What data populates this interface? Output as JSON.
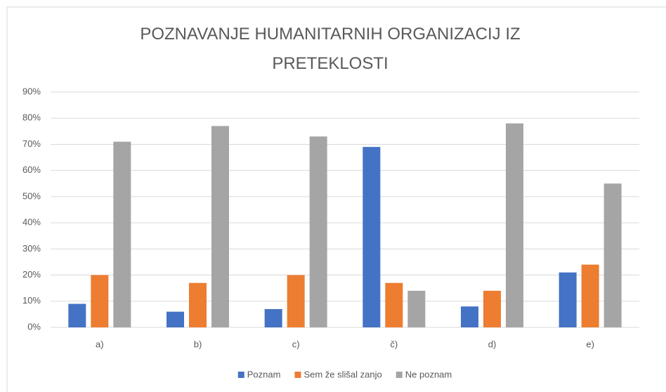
{
  "chart_data": {
    "type": "bar",
    "title": "POZNAVANJE HUMANITARNIH ORGANIZACIJ IZ PRETEKLOSTI",
    "categories": [
      "a)",
      "b)",
      "c)",
      "č)",
      "d)",
      "e)"
    ],
    "series": [
      {
        "name": "Poznam",
        "color": "#4472c4",
        "values": [
          9,
          6,
          7,
          69,
          8,
          21
        ]
      },
      {
        "name": "Sem že slišal zanjo",
        "color": "#ed7d31",
        "values": [
          20,
          17,
          20,
          17,
          14,
          24
        ]
      },
      {
        "name": "Ne poznam",
        "color": "#a5a5a5",
        "values": [
          71,
          77,
          73,
          14,
          78,
          55
        ]
      }
    ],
    "ylim": [
      0,
      90
    ],
    "yticks": [
      {
        "value": 0,
        "label": "0%"
      },
      {
        "value": 10,
        "label": "10%"
      },
      {
        "value": 20,
        "label": "20%"
      },
      {
        "value": 30,
        "label": "30%"
      },
      {
        "value": 40,
        "label": "40%"
      },
      {
        "value": 50,
        "label": "50%"
      },
      {
        "value": 60,
        "label": "60%"
      },
      {
        "value": 70,
        "label": "70%"
      },
      {
        "value": 80,
        "label": "80%"
      },
      {
        "value": 90,
        "label": "90%"
      }
    ],
    "grid": true,
    "legend": "bottom"
  }
}
